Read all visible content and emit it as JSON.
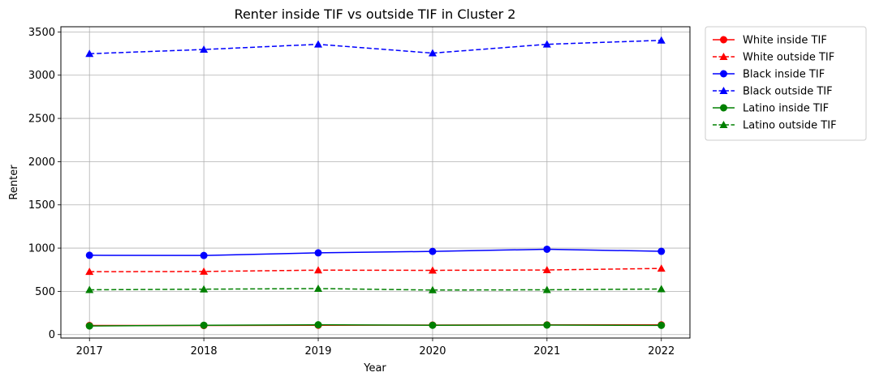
{
  "chart_data": {
    "type": "line",
    "title": "Renter inside TIF vs outside TIF in Cluster 2",
    "xlabel": "Year",
    "ylabel": "Renter",
    "x": [
      "2017",
      "2018",
      "2019",
      "2020",
      "2021",
      "2022"
    ],
    "xlim": [
      2016.75,
      2022.25
    ],
    "ylim": [
      -40,
      3560
    ],
    "yticks": [
      0,
      500,
      1000,
      1500,
      2000,
      2500,
      3000,
      3500
    ],
    "grid": true,
    "legend_position": "outside top-right",
    "series": [
      {
        "name": "White inside TIF",
        "color": "#ff0000",
        "linestyle": "solid",
        "marker": "circle",
        "values": [
          105,
          105,
          108,
          110,
          112,
          112
        ]
      },
      {
        "name": "White outside TIF",
        "color": "#ff0000",
        "linestyle": "dashed",
        "marker": "triangle",
        "values": [
          727,
          730,
          745,
          743,
          747,
          765
        ]
      },
      {
        "name": "Black inside TIF",
        "color": "#0000ff",
        "linestyle": "solid",
        "marker": "circle",
        "values": [
          917,
          915,
          945,
          962,
          987,
          963
        ]
      },
      {
        "name": "Black outside TIF",
        "color": "#0000ff",
        "linestyle": "dashed",
        "marker": "triangle",
        "values": [
          3248,
          3297,
          3357,
          3255,
          3357,
          3403
        ]
      },
      {
        "name": "Latino inside TIF",
        "color": "#008000",
        "linestyle": "solid",
        "marker": "circle",
        "values": [
          100,
          108,
          113,
          108,
          110,
          107
        ]
      },
      {
        "name": "Latino outside TIF",
        "color": "#008000",
        "linestyle": "dashed",
        "marker": "triangle",
        "values": [
          518,
          525,
          532,
          515,
          518,
          527
        ]
      }
    ]
  }
}
